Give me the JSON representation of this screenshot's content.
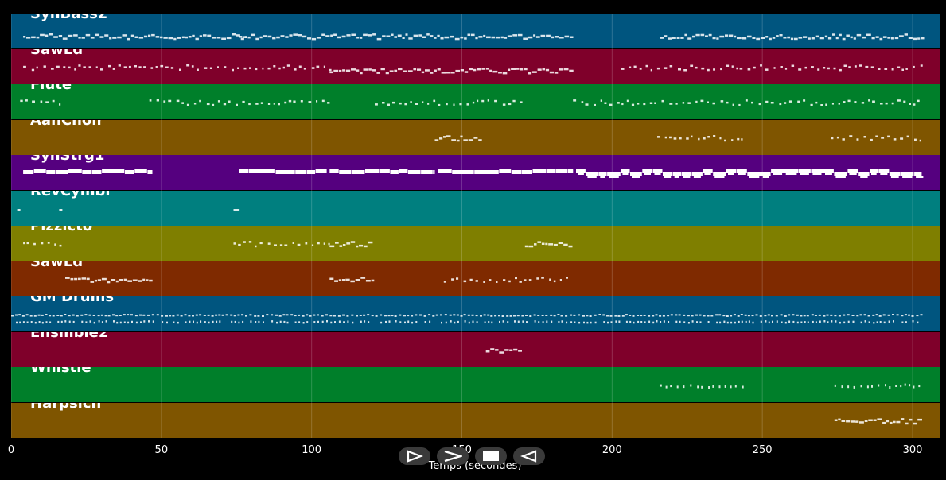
{
  "colors": {
    "background": "#000000",
    "note": "#ffffff",
    "grid": "#ffffff"
  },
  "tracks": [
    {
      "label": "SynBass2",
      "color": "#00557f"
    },
    {
      "label": "SawLd",
      "color": "#7f002a"
    },
    {
      "label": "Flute",
      "color": "#007f2a"
    },
    {
      "label": "AahChoir",
      "color": "#7f5500"
    },
    {
      "label": "SynStrg1",
      "color": "#55007f"
    },
    {
      "label": "RevCymbl",
      "color": "#007f7f"
    },
    {
      "label": "Pizzicto",
      "color": "#7f7f00"
    },
    {
      "label": "SawLd",
      "color": "#7f2a00"
    },
    {
      "label": "GM Drums",
      "color": "#00557f"
    },
    {
      "label": "Ensmble2",
      "color": "#7f002a"
    },
    {
      "label": "Whistle",
      "color": "#007f2a"
    },
    {
      "label": "Harpsich",
      "color": "#7f5500"
    }
  ],
  "axis": {
    "ticks": [
      "0",
      "50",
      "100",
      "150",
      "200",
      "250",
      "300"
    ],
    "tick_values": [
      0,
      50,
      100,
      150,
      200,
      250,
      300
    ],
    "xmax": 309,
    "title": "Temps (secondes)"
  },
  "controls": [
    {
      "name": "play-forward-button",
      "icon": "play-outline-icon"
    },
    {
      "name": "fast-forward-button",
      "icon": "chevron-right-icon"
    },
    {
      "name": "stop-button",
      "icon": "stop-icon"
    },
    {
      "name": "rewind-button",
      "icon": "play-back-outline-icon"
    }
  ],
  "note_sections": [
    {
      "track": 0,
      "segments": [
        [
          4,
          78,
          "dense"
        ],
        [
          76,
          187,
          "dense"
        ],
        [
          216,
          303,
          "dense"
        ]
      ]
    },
    {
      "track": 1,
      "segments": [
        [
          4,
          106,
          "sparse"
        ],
        [
          106,
          187,
          "dense"
        ],
        [
          203,
          303,
          "sparse"
        ]
      ]
    },
    {
      "track": 2,
      "segments": [
        [
          3,
          17,
          "sparse"
        ],
        [
          46,
          106,
          "sparse"
        ],
        [
          121,
          170,
          "sparse"
        ],
        [
          187,
          303,
          "sparse"
        ]
      ]
    },
    {
      "track": 3,
      "segments": [
        [
          141,
          156,
          "dense"
        ],
        [
          215,
          244,
          "sparse"
        ],
        [
          273,
          303,
          "sparse"
        ]
      ]
    },
    {
      "track": 4,
      "segments": [
        [
          4,
          47,
          "block"
        ],
        [
          76,
          105,
          "block"
        ],
        [
          106,
          141,
          "block"
        ],
        [
          142,
          187,
          "block"
        ],
        [
          188,
          303,
          "blockwide"
        ]
      ]
    },
    {
      "track": 5,
      "segments": [
        [
          2,
          3,
          "dot"
        ],
        [
          16,
          17,
          "dot"
        ],
        [
          74,
          76,
          "dot"
        ]
      ]
    },
    {
      "track": 6,
      "segments": [
        [
          4,
          17,
          "sparse"
        ],
        [
          74,
          106,
          "sparse"
        ],
        [
          106,
          120,
          "dense"
        ],
        [
          171,
          186,
          "dense"
        ]
      ]
    },
    {
      "track": 7,
      "segments": [
        [
          18,
          46,
          "dense"
        ],
        [
          106,
          120,
          "dense"
        ],
        [
          144,
          186,
          "sparse"
        ]
      ]
    },
    {
      "track": 8,
      "segments": [
        [
          0,
          303,
          "drums"
        ]
      ]
    },
    {
      "track": 9,
      "segments": [
        [
          158,
          170,
          "dense"
        ]
      ]
    },
    {
      "track": 10,
      "segments": [
        [
          216,
          245,
          "tri"
        ],
        [
          274,
          303,
          "tri"
        ]
      ]
    },
    {
      "track": 11,
      "segments": [
        [
          274,
          303,
          "dense"
        ]
      ]
    }
  ]
}
